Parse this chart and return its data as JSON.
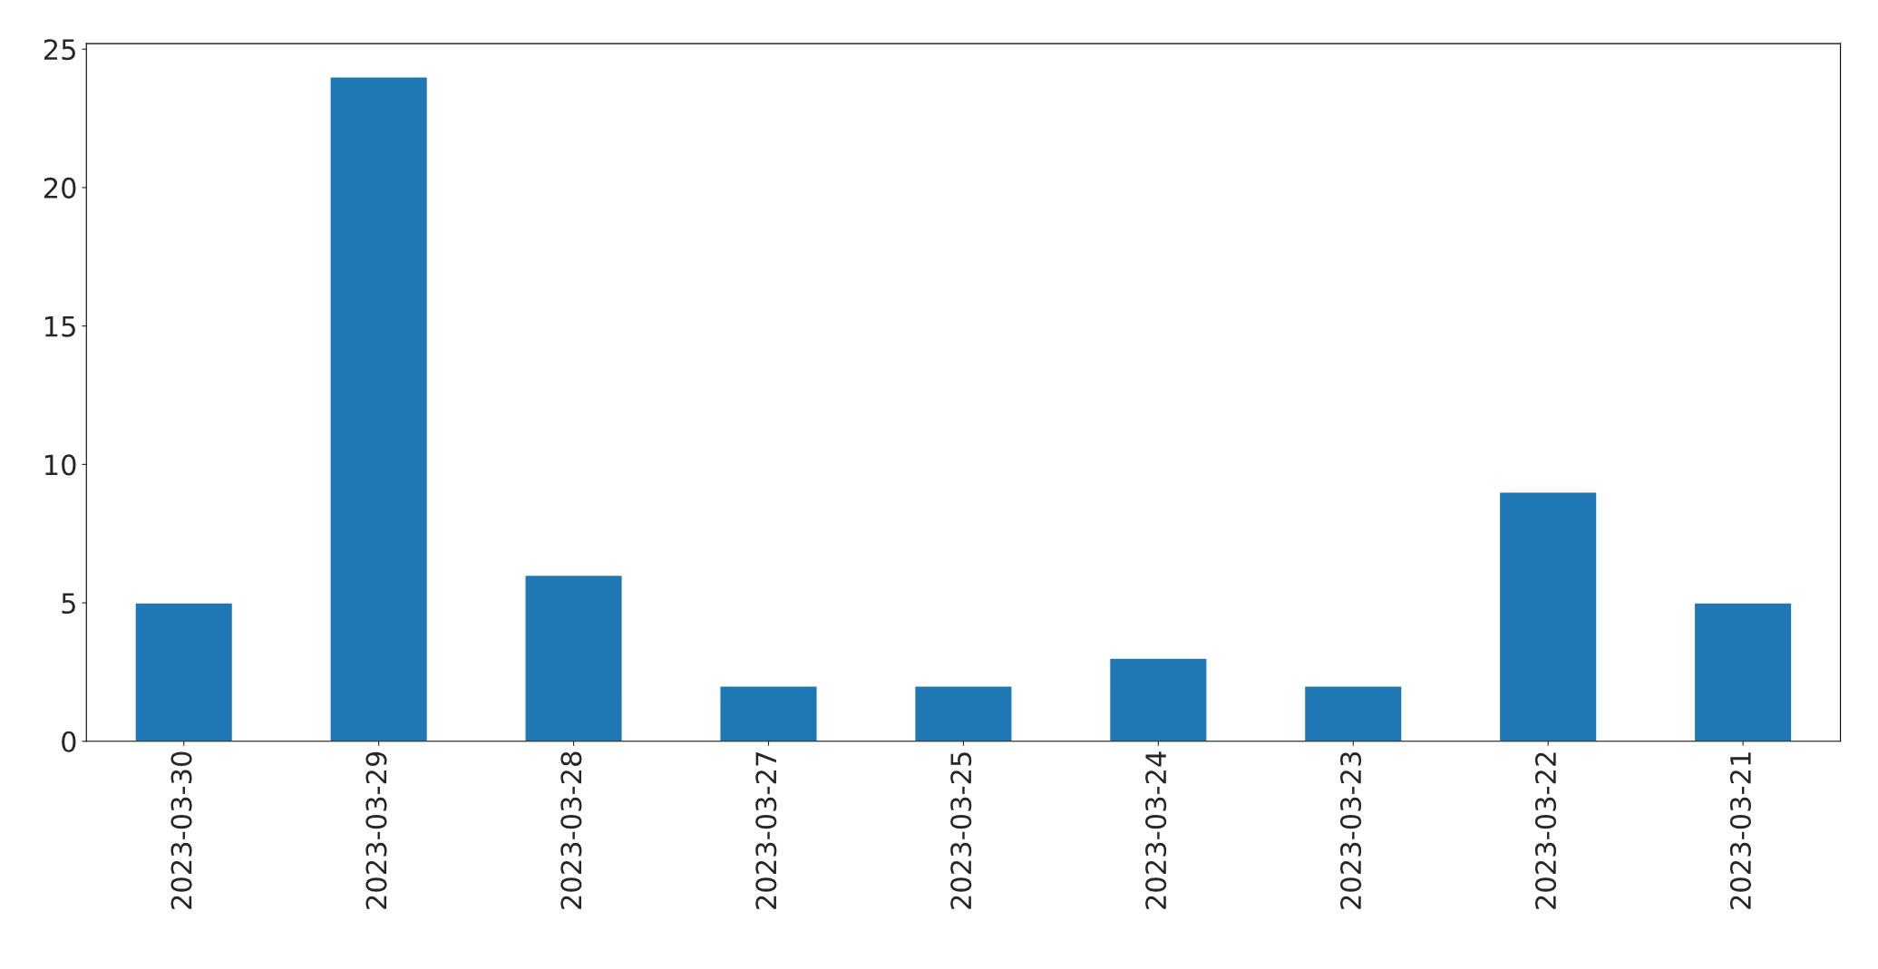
{
  "chart_data": {
    "type": "bar",
    "categories": [
      "2023-03-30",
      "2023-03-29",
      "2023-03-28",
      "2023-03-27",
      "2023-03-25",
      "2023-03-24",
      "2023-03-23",
      "2023-03-22",
      "2023-03-21"
    ],
    "values": [
      5,
      24,
      6,
      2,
      2,
      3,
      2,
      9,
      5
    ],
    "color": "#1f77b4",
    "ylim": [
      0,
      25.2
    ],
    "yticks": [
      0,
      5,
      10,
      15,
      20,
      25
    ],
    "grid": false
  }
}
